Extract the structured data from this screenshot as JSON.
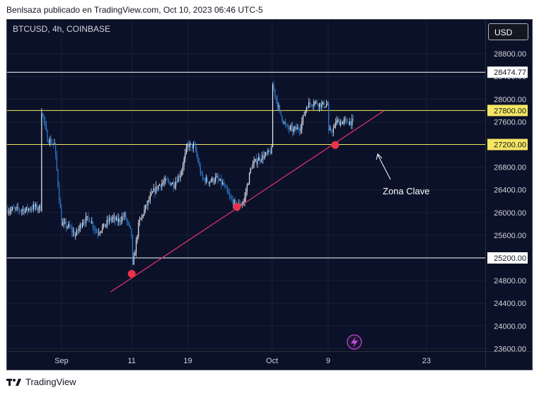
{
  "header": {
    "text": "Benlsaza publicado en TradingView.com, Oct 10, 2023 06:46 UTC-5"
  },
  "symbol": {
    "text": "BTCUSD, 4h, COINBASE"
  },
  "currency_button": {
    "label": "USD"
  },
  "footer": {
    "brand": "TradingView"
  },
  "annotation": {
    "text": "Zona Clave"
  },
  "colors": {
    "background": "#0b1128",
    "up": "#e8eaf0",
    "down": "#2a7fd6",
    "white_line": "#ffffff",
    "yellow_line": "#f5e663",
    "trend_line": "#e8336d",
    "marker": "#e8334a"
  },
  "chart_data": {
    "type": "candlestick",
    "y_ticks": [
      "23600.00",
      "24000.00",
      "24400.00",
      "24800.00",
      "25200.00",
      "25600.00",
      "26000.00",
      "26400.00",
      "26800.00",
      "27200.00",
      "27600.00",
      "28000.00",
      "28400.00",
      "28800.00"
    ],
    "x_ticks": [
      {
        "label": "Sep",
        "date": "2023-09-01"
      },
      {
        "label": "11",
        "date": "2023-09-11"
      },
      {
        "label": "19",
        "date": "2023-09-19"
      },
      {
        "label": "Oct",
        "date": "2023-10-01"
      },
      {
        "label": "9",
        "date": "2023-10-09"
      },
      {
        "label": "23",
        "date": "2023-10-23"
      }
    ],
    "ylim": [
      23600,
      29200
    ],
    "xlim": [
      "2023-08-25",
      "2023-10-27"
    ],
    "horizontal_lines": [
      {
        "price": 28474.77,
        "label": "28474.77",
        "color": "white"
      },
      {
        "price": 27800.0,
        "label": "27800.00",
        "color": "yellow"
      },
      {
        "price": 27200.0,
        "label": "27200.00",
        "color": "yellow"
      },
      {
        "price": 25200.0,
        "label": "25200.00",
        "color": "white"
      }
    ],
    "trend_line": {
      "start": {
        "date": "2023-09-08",
        "price": 24600
      },
      "end": {
        "date": "2023-10-17",
        "price": 27800
      }
    },
    "markers": [
      {
        "date": "2023-09-11",
        "price": 24920
      },
      {
        "date": "2023-09-26",
        "price": 26100
      },
      {
        "date": "2023-10-10",
        "price": 27190
      }
    ],
    "path": [
      [
        "2023-08-25",
        26050
      ],
      [
        "2023-08-27",
        26050
      ],
      [
        "2023-08-28",
        26100
      ],
      [
        "2023-08-29",
        26080
      ],
      [
        "2023-08-29",
        27900
      ],
      [
        "2023-08-30",
        27300
      ],
      [
        "2023-08-31",
        27200
      ],
      [
        "2023-09-01",
        25800
      ],
      [
        "2023-09-02",
        25750
      ],
      [
        "2023-09-03",
        25600
      ],
      [
        "2023-09-04",
        25850
      ],
      [
        "2023-09-05",
        25900
      ],
      [
        "2023-09-06",
        25650
      ],
      [
        "2023-09-07",
        25750
      ],
      [
        "2023-09-08",
        25900
      ],
      [
        "2023-09-09",
        25850
      ],
      [
        "2023-09-10",
        25950
      ],
      [
        "2023-09-11",
        25600
      ],
      [
        "2023-09-11",
        24920
      ],
      [
        "2023-09-12",
        25800
      ],
      [
        "2023-09-13",
        26100
      ],
      [
        "2023-09-14",
        26350
      ],
      [
        "2023-09-15",
        26500
      ],
      [
        "2023-09-16",
        26550
      ],
      [
        "2023-09-17",
        26500
      ],
      [
        "2023-09-18",
        26700
      ],
      [
        "2023-09-19",
        27200
      ],
      [
        "2023-09-20",
        27150
      ],
      [
        "2023-09-21",
        26600
      ],
      [
        "2023-09-22",
        26550
      ],
      [
        "2023-09-23",
        26600
      ],
      [
        "2023-09-24",
        26500
      ],
      [
        "2023-09-25",
        26250
      ],
      [
        "2023-09-26",
        26100
      ],
      [
        "2023-09-27",
        26200
      ],
      [
        "2023-09-28",
        26800
      ],
      [
        "2023-09-29",
        26950
      ],
      [
        "2023-09-30",
        27000
      ],
      [
        "2023-10-01",
        27100
      ],
      [
        "2023-10-01",
        28300
      ],
      [
        "2023-10-02",
        27800
      ],
      [
        "2023-10-03",
        27500
      ],
      [
        "2023-10-04",
        27450
      ],
      [
        "2023-10-05",
        27500
      ],
      [
        "2023-10-06",
        27900
      ],
      [
        "2023-10-07",
        27950
      ],
      [
        "2023-10-08",
        27900
      ],
      [
        "2023-10-09",
        27900
      ],
      [
        "2023-10-09",
        27400
      ],
      [
        "2023-10-10",
        27500
      ],
      [
        "2023-10-10",
        27600
      ]
    ]
  }
}
